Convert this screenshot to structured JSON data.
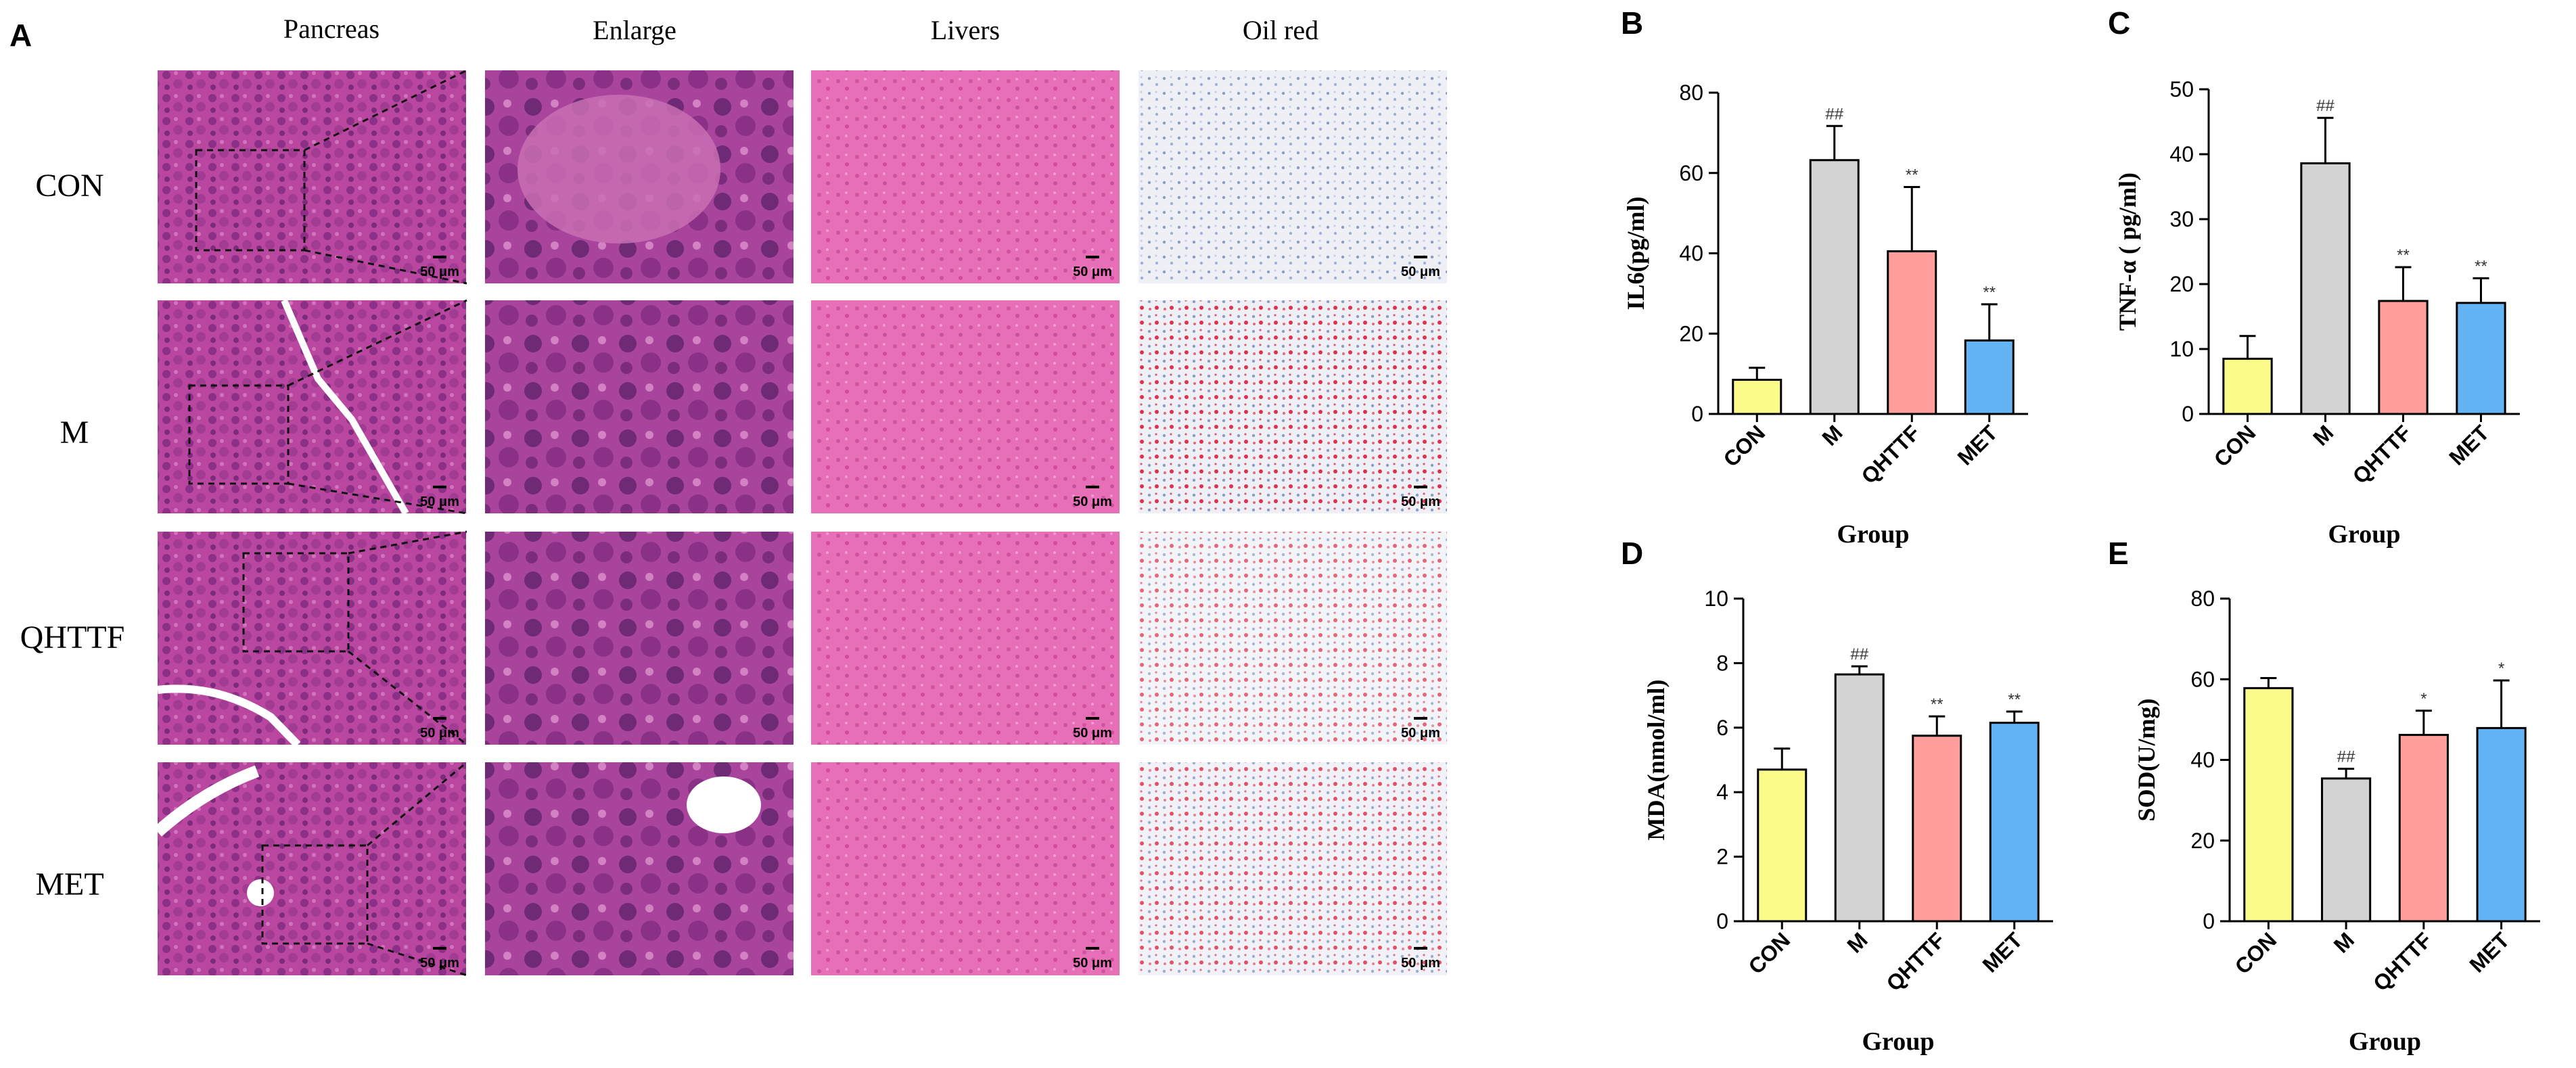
{
  "panel_a": {
    "letter": "A",
    "columns": [
      "Pancreas",
      "Enlarge",
      "Livers",
      "Oil red"
    ],
    "rows": [
      "CON",
      "M",
      "QHTTF",
      "MET"
    ],
    "scale_bar": "50 μm"
  },
  "colors": {
    "CON": "#fbfb8a",
    "M": "#d3d3d3",
    "QHTTF": "#ff9e9a",
    "MET": "#62b4f5",
    "he_stain": "#b9479f",
    "liver_stain": "#e66fb8",
    "oil_red_bg": "#eef0f6",
    "oil_red_dot": "#e0304d"
  },
  "chart_data": [
    {
      "panel": "B",
      "type": "bar",
      "title": "",
      "xlabel": "Group",
      "ylabel": "IL6(pg/ml)",
      "categories": [
        "CON",
        "M",
        "QHTTF",
        "MET"
      ],
      "values": [
        8.5,
        63.2,
        40.5,
        18.3
      ],
      "errors": [
        3,
        8.5,
        16,
        9
      ],
      "significance": [
        "",
        "##",
        "**",
        "**"
      ],
      "ylim": [
        0,
        80
      ],
      "yticks": [
        0,
        20,
        40,
        60,
        80
      ]
    },
    {
      "panel": "C",
      "type": "bar",
      "title": "",
      "xlabel": "Group",
      "ylabel": "TNF-α ( pg/ml)",
      "categories": [
        "CON",
        "M",
        "QHTTF",
        "MET"
      ],
      "values": [
        8.5,
        38.6,
        17.4,
        17.1
      ],
      "errors": [
        3.5,
        7,
        5.2,
        3.8
      ],
      "significance": [
        "",
        "##",
        "**",
        "**"
      ],
      "ylim": [
        0,
        50
      ],
      "yticks": [
        0,
        10,
        20,
        30,
        40,
        50
      ]
    },
    {
      "panel": "D",
      "type": "bar",
      "title": "",
      "xlabel": "Group",
      "ylabel": "MDA(nmol/ml)",
      "categories": [
        "CON",
        "M",
        "QHTTF",
        "MET"
      ],
      "values": [
        4.7,
        7.65,
        5.75,
        6.15
      ],
      "errors": [
        0.65,
        0.25,
        0.6,
        0.35
      ],
      "significance": [
        "",
        "##",
        "**",
        "**"
      ],
      "ylim": [
        0,
        10
      ],
      "yticks": [
        0,
        2,
        4,
        6,
        8,
        10
      ]
    },
    {
      "panel": "E",
      "type": "bar",
      "title": "",
      "xlabel": "Group",
      "ylabel": "SOD(U/mg)",
      "categories": [
        "CON",
        "M",
        "QHTTF",
        "MET"
      ],
      "values": [
        57.8,
        35.4,
        46.2,
        47.9
      ],
      "errors": [
        2.5,
        2.4,
        6,
        11.8
      ],
      "significance": [
        "",
        "##",
        "*",
        "*"
      ],
      "ylim": [
        0,
        80
      ],
      "yticks": [
        0,
        20,
        40,
        60,
        80
      ]
    }
  ]
}
